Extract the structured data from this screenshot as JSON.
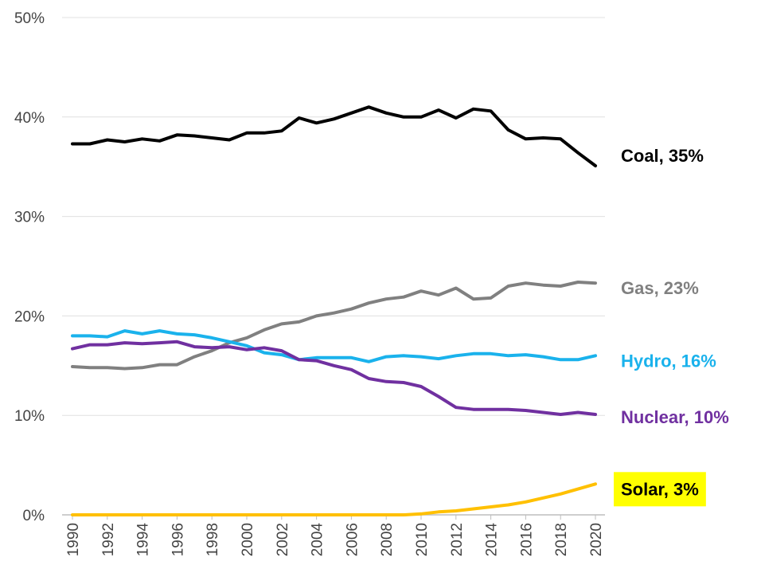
{
  "chart_data": {
    "type": "line",
    "x": [
      1990,
      1991,
      1992,
      1993,
      1994,
      1995,
      1996,
      1997,
      1998,
      1999,
      2000,
      2001,
      2002,
      2003,
      2004,
      2005,
      2006,
      2007,
      2008,
      2009,
      2010,
      2011,
      2012,
      2013,
      2014,
      2015,
      2016,
      2017,
      2018,
      2019,
      2020
    ],
    "series": [
      {
        "name": "Coal, 35%",
        "color": "#000000",
        "label_color": "#000000",
        "values": [
          37.3,
          37.3,
          37.7,
          37.5,
          37.8,
          37.6,
          38.2,
          38.1,
          37.9,
          37.7,
          38.4,
          38.4,
          38.6,
          39.9,
          39.4,
          39.8,
          40.4,
          41.0,
          40.4,
          40.0,
          40.0,
          40.7,
          39.9,
          40.8,
          40.6,
          38.7,
          37.8,
          37.9,
          37.8,
          36.4,
          35.1
        ]
      },
      {
        "name": "Gas, 23%",
        "color": "#808080",
        "label_color": "#808080",
        "values": [
          14.9,
          14.8,
          14.8,
          14.7,
          14.8,
          15.1,
          15.1,
          15.9,
          16.5,
          17.3,
          17.8,
          18.6,
          19.2,
          19.4,
          20.0,
          20.3,
          20.7,
          21.3,
          21.7,
          21.9,
          22.5,
          22.1,
          22.8,
          21.7,
          21.8,
          23.0,
          23.3,
          23.1,
          23.0,
          23.4,
          23.3
        ]
      },
      {
        "name": "Hydro, 16%",
        "color": "#1ab2ec",
        "label_color": "#1ab2ec",
        "values": [
          18.0,
          18.0,
          17.9,
          18.5,
          18.2,
          18.5,
          18.2,
          18.1,
          17.8,
          17.4,
          17.0,
          16.3,
          16.1,
          15.6,
          15.8,
          15.8,
          15.8,
          15.4,
          15.9,
          16.0,
          15.9,
          15.7,
          16.0,
          16.2,
          16.2,
          16.0,
          16.1,
          15.9,
          15.6,
          15.6,
          16.0
        ]
      },
      {
        "name": "Nuclear, 10%",
        "color": "#7030a0",
        "label_color": "#7030a0",
        "values": [
          16.7,
          17.1,
          17.1,
          17.3,
          17.2,
          17.3,
          17.4,
          16.9,
          16.8,
          16.9,
          16.6,
          16.8,
          16.5,
          15.6,
          15.5,
          15.0,
          14.6,
          13.7,
          13.4,
          13.3,
          12.9,
          11.9,
          10.8,
          10.6,
          10.6,
          10.6,
          10.5,
          10.3,
          10.1,
          10.3,
          10.1
        ]
      },
      {
        "name": "Solar, 3%",
        "color": "#ffc000",
        "label_color": "#000000",
        "label_background": "#ffff00",
        "values": [
          0,
          0,
          0,
          0,
          0,
          0,
          0,
          0,
          0,
          0,
          0,
          0,
          0,
          0,
          0,
          0,
          0,
          0,
          0,
          0,
          0.1,
          0.3,
          0.4,
          0.6,
          0.8,
          1.0,
          1.3,
          1.7,
          2.1,
          2.6,
          3.1
        ]
      }
    ],
    "xlim": [
      1990,
      2020
    ],
    "xticks": [
      1990,
      1992,
      1994,
      1996,
      1998,
      2000,
      2002,
      2004,
      2006,
      2008,
      2010,
      2012,
      2014,
      2016,
      2018,
      2020
    ],
    "ylim": [
      0,
      50
    ],
    "yticks": [
      {
        "value": 0,
        "label": "0%"
      },
      {
        "value": 10,
        "label": "10%"
      },
      {
        "value": 20,
        "label": "20%"
      },
      {
        "value": 30,
        "label": "30%"
      },
      {
        "value": 40,
        "label": "40%"
      },
      {
        "value": 50,
        "label": "50%"
      }
    ],
    "grid": true
  }
}
